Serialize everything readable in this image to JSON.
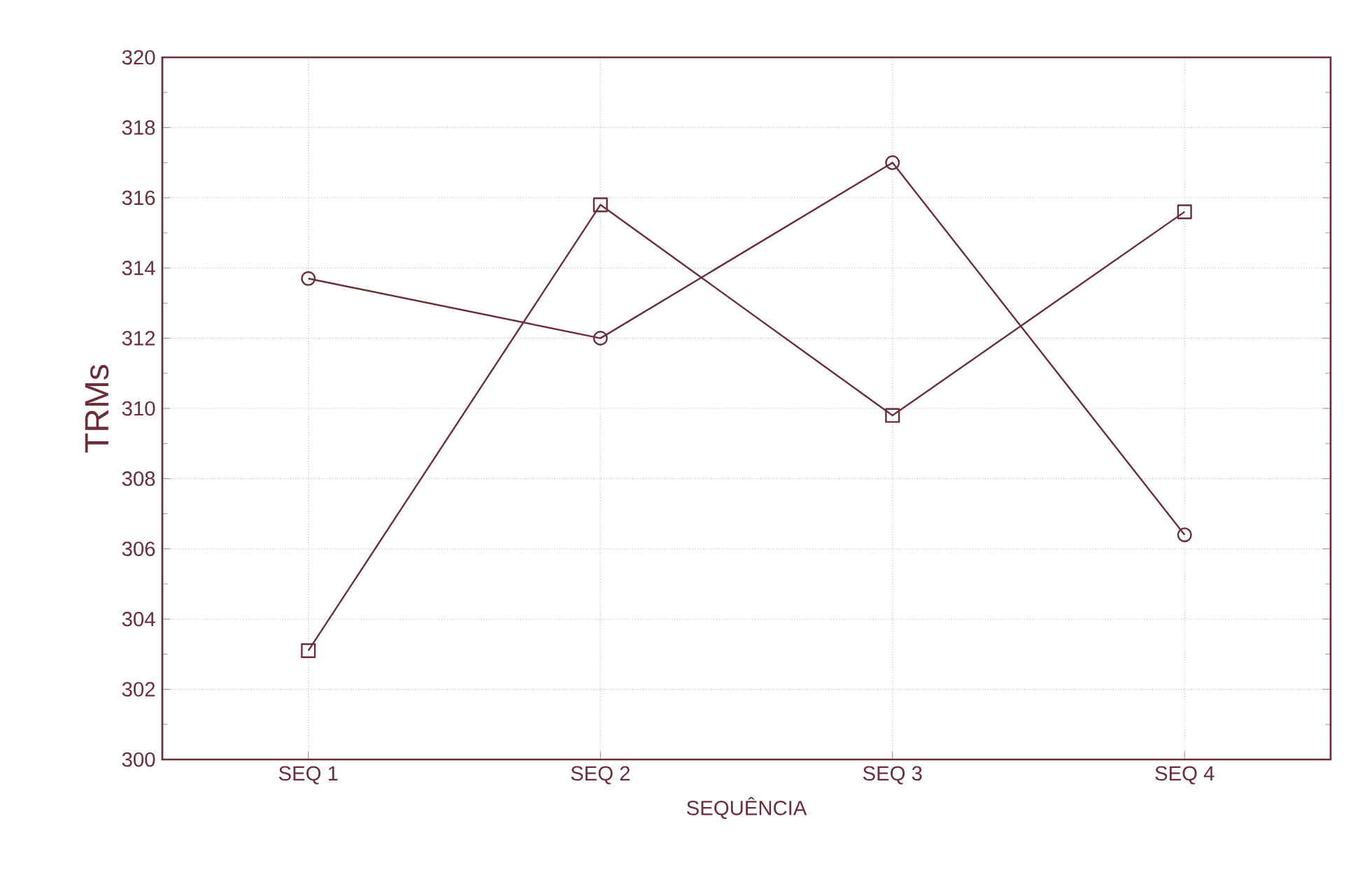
{
  "chart_data": {
    "type": "line",
    "xlabel": "SEQUÊNCIA",
    "ylabel": "TRMs",
    "categories": [
      "SEQ 1",
      "SEQ 2",
      "SEQ 3",
      "SEQ 4"
    ],
    "series": [
      {
        "color": "#6b2d38",
        "marker": "circle",
        "values": [
          313.7,
          312.0,
          317.0,
          306.4
        ]
      },
      {
        "color": "#6b2d38",
        "marker": "square",
        "values": [
          303.1,
          315.8,
          309.8,
          315.6
        ]
      }
    ],
    "ylim": [
      300,
      320
    ],
    "yticks": [
      300,
      302,
      304,
      306,
      308,
      310,
      312,
      314,
      316,
      318,
      320
    ],
    "grid": true,
    "line_style": "solid"
  }
}
